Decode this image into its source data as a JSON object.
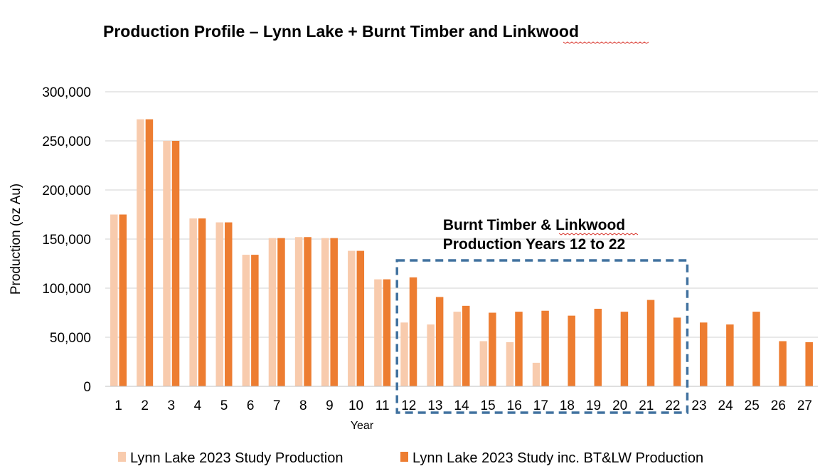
{
  "chart_data": {
    "type": "bar",
    "title_parts": [
      "Production Profile – Lynn Lake + Burnt Timber and ",
      "Linkwood"
    ],
    "xlabel": "Year",
    "ylabel": "Production (oz Au)",
    "ylim": [
      0,
      300000
    ],
    "yticks": [
      0,
      50000,
      100000,
      150000,
      200000,
      250000,
      300000
    ],
    "ytick_labels": [
      "0",
      "50,000",
      "100,000",
      "150,000",
      "200,000",
      "250,000",
      "300,000"
    ],
    "grid": true,
    "legend_position": "bottom",
    "categories": [
      "1",
      "2",
      "3",
      "4",
      "5",
      "6",
      "7",
      "8",
      "9",
      "10",
      "11",
      "12",
      "13",
      "14",
      "15",
      "16",
      "17",
      "18",
      "19",
      "20",
      "21",
      "22",
      "23",
      "24",
      "25",
      "26",
      "27"
    ],
    "series": [
      {
        "name": "Lynn Lake 2023 Study Production",
        "color": "#f8cbad",
        "values": [
          175000,
          272000,
          250000,
          171000,
          167000,
          134000,
          151000,
          152000,
          151000,
          138000,
          109000,
          65000,
          63000,
          76000,
          46000,
          45000,
          24000,
          0,
          0,
          0,
          0,
          0,
          0,
          0,
          0,
          0,
          0
        ]
      },
      {
        "name": "Lynn Lake 2023 Study inc. BT&LW Production",
        "color": "#ed7d31",
        "values": [
          175000,
          272000,
          250000,
          171000,
          167000,
          134000,
          151000,
          152000,
          151000,
          138000,
          109000,
          111000,
          91000,
          82000,
          75000,
          76000,
          77000,
          72000,
          79000,
          76000,
          88000,
          70000,
          65000,
          63000,
          76000,
          46000,
          45000
        ]
      }
    ],
    "annotation": {
      "line1_parts": [
        "Burnt Timber & ",
        "Linkwood"
      ],
      "line2": "Production Years 12 to 22",
      "box_color": "#41729f",
      "from_category": "12",
      "to_category": "22"
    }
  }
}
